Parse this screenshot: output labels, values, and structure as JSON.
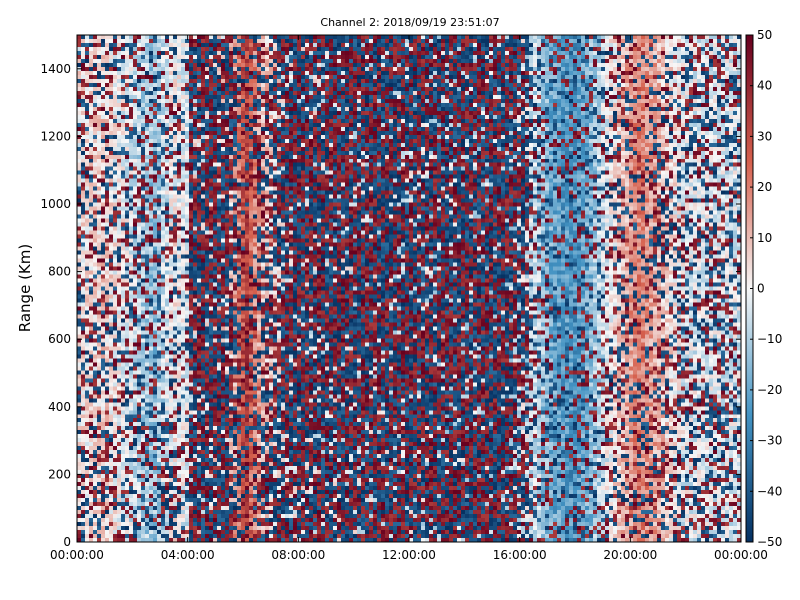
{
  "chart_data": {
    "type": "heatmap",
    "title": "Channel 2: 2018/09/19 23:51:07",
    "ylabel": "Range (Km)",
    "xlabel": "",
    "x_ticks": [
      "00:00:00",
      "04:00:00",
      "08:00:00",
      "12:00:00",
      "16:00:00",
      "20:00:00",
      "00:00:00"
    ],
    "y_ticks": [
      0,
      200,
      400,
      600,
      800,
      1000,
      1200,
      1400
    ],
    "ylim": [
      0,
      1500
    ],
    "xlim_hours": [
      0,
      24
    ],
    "colorbar": {
      "ticks": [
        50,
        40,
        30,
        20,
        10,
        0,
        -10,
        -20,
        -30,
        -40,
        -50
      ],
      "range": [
        -50,
        50
      ],
      "colormap": "RdBu_r",
      "colors": {
        "low": "#053061",
        "mid_low": "#4393c3",
        "mid": "#f7f7f7",
        "mid_high": "#d6604d",
        "high": "#67001f"
      }
    },
    "time_profile": [
      {
        "hours": 0.0,
        "mean": 2,
        "noise": 0.45
      },
      {
        "hours": 1.0,
        "mean": 6,
        "noise": 0.4
      },
      {
        "hours": 2.0,
        "mean": -5,
        "noise": 0.4
      },
      {
        "hours": 2.8,
        "mean": -14,
        "noise": 0.35
      },
      {
        "hours": 3.5,
        "mean": 2,
        "noise": 0.35
      },
      {
        "hours": 4.05,
        "mean": -5,
        "noise": 0.3
      },
      {
        "hours": 4.1,
        "mean": 0,
        "noise": 0.92
      },
      {
        "hours": 5.5,
        "mean": 5,
        "noise": 0.85
      },
      {
        "hours": 5.9,
        "mean": 20,
        "noise": 0.5
      },
      {
        "hours": 6.1,
        "mean": 35,
        "noise": 0.3
      },
      {
        "hours": 6.4,
        "mean": 18,
        "noise": 0.5
      },
      {
        "hours": 6.8,
        "mean": 8,
        "noise": 0.55
      },
      {
        "hours": 7.6,
        "mean": 0,
        "noise": 0.9
      },
      {
        "hours": 13.0,
        "mean": -4,
        "noise": 0.9
      },
      {
        "hours": 15.5,
        "mean": -6,
        "noise": 0.9
      },
      {
        "hours": 16.2,
        "mean": -3,
        "noise": 0.75
      },
      {
        "hours": 16.6,
        "mean": -8,
        "noise": 0.35
      },
      {
        "hours": 17.2,
        "mean": -20,
        "noise": 0.3
      },
      {
        "hours": 18.0,
        "mean": -25,
        "noise": 0.3
      },
      {
        "hours": 18.6,
        "mean": -15,
        "noise": 0.3
      },
      {
        "hours": 19.4,
        "mean": 3,
        "noise": 0.35
      },
      {
        "hours": 20.3,
        "mean": 20,
        "noise": 0.3
      },
      {
        "hours": 21.0,
        "mean": 12,
        "noise": 0.35
      },
      {
        "hours": 21.8,
        "mean": -2,
        "noise": 0.45
      },
      {
        "hours": 24.0,
        "mean": -4,
        "noise": 0.45
      }
    ]
  }
}
